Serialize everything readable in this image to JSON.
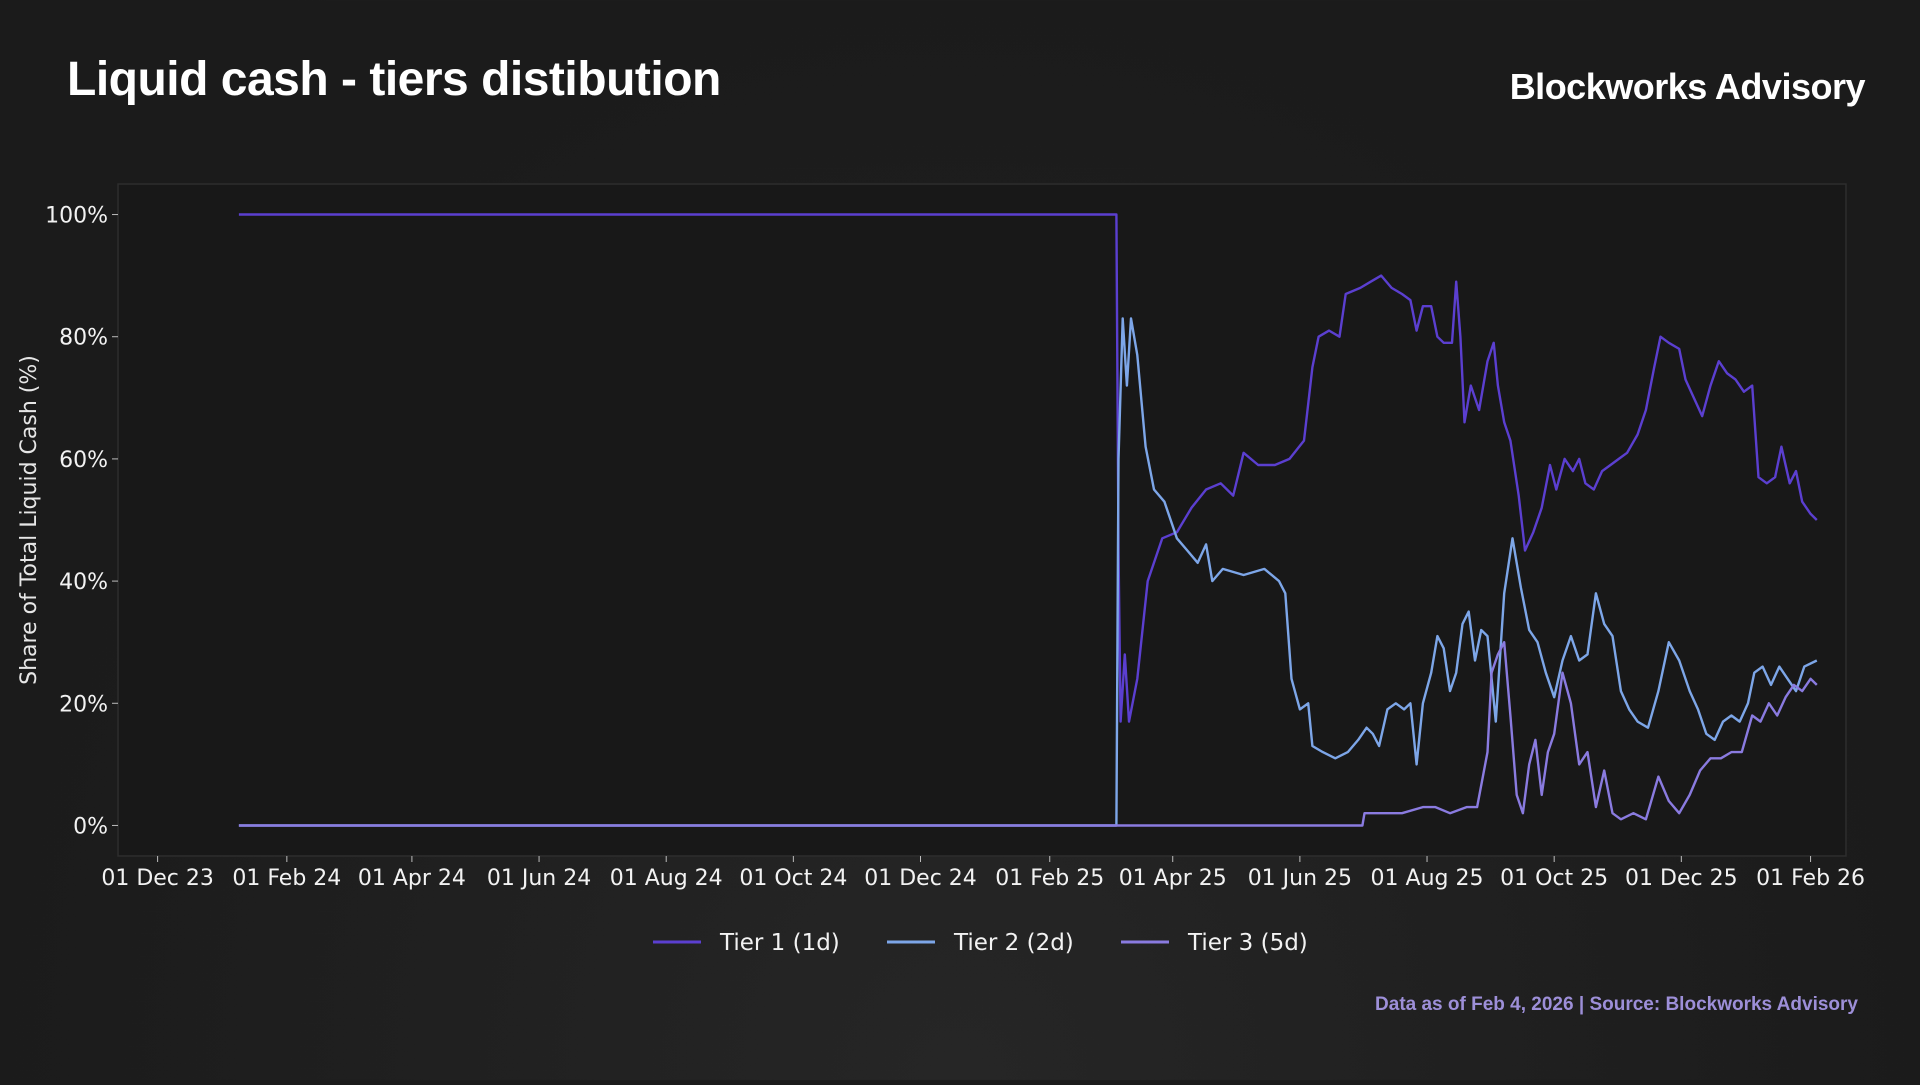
{
  "header": {
    "title": "Liquid cash - tiers distibution",
    "brand": "Blockworks Advisory"
  },
  "footer": {
    "source": "Data as of Feb 4, 2026 | Source: Blockworks Advisory"
  },
  "chart_data": {
    "type": "line",
    "title": "Liquid cash - tiers distibution",
    "xlabel": "",
    "ylabel": "Share of Total Liquid Cash (%)",
    "x_range": [
      "2023-11-12",
      "2026-02-18"
    ],
    "ylim": [
      -5,
      105
    ],
    "yticks": [
      0,
      20,
      40,
      60,
      80,
      100
    ],
    "ytick_labels": [
      "0%",
      "20%",
      "40%",
      "60%",
      "80%",
      "100%"
    ],
    "xticks": [
      "2023-12-01",
      "2024-02-01",
      "2024-04-01",
      "2024-06-01",
      "2024-08-01",
      "2024-10-01",
      "2024-12-01",
      "2025-02-01",
      "2025-04-01",
      "2025-06-01",
      "2025-08-01",
      "2025-10-01",
      "2025-12-01",
      "2026-02-01"
    ],
    "xtick_labels": [
      "01 Dec 23",
      "01 Feb 24",
      "01 Apr 24",
      "01 Jun 24",
      "01 Aug 24",
      "01 Oct 24",
      "01 Dec 24",
      "01 Feb 25",
      "01 Apr 25",
      "01 Jun 25",
      "01 Aug 25",
      "01 Oct 25",
      "01 Dec 25",
      "01 Feb 26"
    ],
    "grid": false,
    "legend_position": "bottom-center",
    "series": [
      {
        "name": "Tier 1 (1d)",
        "color": "#5b3fd0",
        "points": [
          [
            "2024-01-09",
            100
          ],
          [
            "2025-03-05",
            100
          ],
          [
            "2025-03-06",
            45
          ],
          [
            "2025-03-07",
            17
          ],
          [
            "2025-03-09",
            28
          ],
          [
            "2025-03-11",
            17
          ],
          [
            "2025-03-15",
            24
          ],
          [
            "2025-03-20",
            40
          ],
          [
            "2025-03-27",
            47
          ],
          [
            "2025-04-03",
            48
          ],
          [
            "2025-04-10",
            52
          ],
          [
            "2025-04-17",
            55
          ],
          [
            "2025-04-24",
            56
          ],
          [
            "2025-04-30",
            54
          ],
          [
            "2025-05-05",
            61
          ],
          [
            "2025-05-12",
            59
          ],
          [
            "2025-05-20",
            59
          ],
          [
            "2025-05-27",
            60
          ],
          [
            "2025-06-03",
            63
          ],
          [
            "2025-06-07",
            75
          ],
          [
            "2025-06-10",
            80
          ],
          [
            "2025-06-15",
            81
          ],
          [
            "2025-06-20",
            80
          ],
          [
            "2025-06-23",
            87
          ],
          [
            "2025-06-30",
            88
          ],
          [
            "2025-07-05",
            89
          ],
          [
            "2025-07-10",
            90
          ],
          [
            "2025-07-15",
            88
          ],
          [
            "2025-07-20",
            87
          ],
          [
            "2025-07-24",
            86
          ],
          [
            "2025-07-27",
            81
          ],
          [
            "2025-07-30",
            85
          ],
          [
            "2025-08-03",
            85
          ],
          [
            "2025-08-06",
            80
          ],
          [
            "2025-08-09",
            79
          ],
          [
            "2025-08-13",
            79
          ],
          [
            "2025-08-15",
            89
          ],
          [
            "2025-08-17",
            80
          ],
          [
            "2025-08-19",
            66
          ],
          [
            "2025-08-22",
            72
          ],
          [
            "2025-08-26",
            68
          ],
          [
            "2025-08-30",
            76
          ],
          [
            "2025-09-02",
            79
          ],
          [
            "2025-09-04",
            72
          ],
          [
            "2025-09-07",
            66
          ],
          [
            "2025-09-10",
            63
          ],
          [
            "2025-09-14",
            54
          ],
          [
            "2025-09-17",
            45
          ],
          [
            "2025-09-21",
            48
          ],
          [
            "2025-09-25",
            52
          ],
          [
            "2025-09-29",
            59
          ],
          [
            "2025-10-02",
            55
          ],
          [
            "2025-10-06",
            60
          ],
          [
            "2025-10-10",
            58
          ],
          [
            "2025-10-13",
            60
          ],
          [
            "2025-10-16",
            56
          ],
          [
            "2025-10-20",
            55
          ],
          [
            "2025-10-24",
            58
          ],
          [
            "2025-10-28",
            59
          ],
          [
            "2025-11-01",
            60
          ],
          [
            "2025-11-05",
            61
          ],
          [
            "2025-11-10",
            64
          ],
          [
            "2025-11-14",
            68
          ],
          [
            "2025-11-18",
            75
          ],
          [
            "2025-11-21",
            80
          ],
          [
            "2025-11-25",
            79
          ],
          [
            "2025-11-30",
            78
          ],
          [
            "2025-12-03",
            73
          ],
          [
            "2025-12-07",
            70
          ],
          [
            "2025-12-11",
            67
          ],
          [
            "2025-12-15",
            72
          ],
          [
            "2025-12-19",
            76
          ],
          [
            "2025-12-23",
            74
          ],
          [
            "2025-12-27",
            73
          ],
          [
            "2025-12-31",
            71
          ],
          [
            "2026-01-04",
            72
          ],
          [
            "2026-01-07",
            57
          ],
          [
            "2026-01-11",
            56
          ],
          [
            "2026-01-15",
            57
          ],
          [
            "2026-01-18",
            62
          ],
          [
            "2026-01-22",
            56
          ],
          [
            "2026-01-25",
            58
          ],
          [
            "2026-01-28",
            53
          ],
          [
            "2026-02-01",
            51
          ],
          [
            "2026-02-04",
            50
          ]
        ]
      },
      {
        "name": "Tier 2 (2d)",
        "color": "#7da6e8",
        "points": [
          [
            "2024-01-09",
            0
          ],
          [
            "2025-03-05",
            0
          ],
          [
            "2025-03-06",
            60
          ],
          [
            "2025-03-08",
            83
          ],
          [
            "2025-03-10",
            72
          ],
          [
            "2025-03-12",
            83
          ],
          [
            "2025-03-15",
            77
          ],
          [
            "2025-03-19",
            62
          ],
          [
            "2025-03-23",
            55
          ],
          [
            "2025-03-28",
            53
          ],
          [
            "2025-04-03",
            47
          ],
          [
            "2025-04-08",
            45
          ],
          [
            "2025-04-13",
            43
          ],
          [
            "2025-04-17",
            46
          ],
          [
            "2025-04-20",
            40
          ],
          [
            "2025-04-25",
            42
          ],
          [
            "2025-05-05",
            41
          ],
          [
            "2025-05-15",
            42
          ],
          [
            "2025-05-22",
            40
          ],
          [
            "2025-05-25",
            38
          ],
          [
            "2025-05-28",
            24
          ],
          [
            "2025-06-01",
            19
          ],
          [
            "2025-06-05",
            20
          ],
          [
            "2025-06-07",
            13
          ],
          [
            "2025-06-12",
            12
          ],
          [
            "2025-06-18",
            11
          ],
          [
            "2025-06-24",
            12
          ],
          [
            "2025-06-29",
            14
          ],
          [
            "2025-07-03",
            16
          ],
          [
            "2025-07-06",
            15
          ],
          [
            "2025-07-09",
            13
          ],
          [
            "2025-07-13",
            19
          ],
          [
            "2025-07-17",
            20
          ],
          [
            "2025-07-21",
            19
          ],
          [
            "2025-07-24",
            20
          ],
          [
            "2025-07-27",
            10
          ],
          [
            "2025-07-30",
            20
          ],
          [
            "2025-08-03",
            25
          ],
          [
            "2025-08-06",
            31
          ],
          [
            "2025-08-09",
            29
          ],
          [
            "2025-08-12",
            22
          ],
          [
            "2025-08-15",
            25
          ],
          [
            "2025-08-18",
            33
          ],
          [
            "2025-08-21",
            35
          ],
          [
            "2025-08-24",
            27
          ],
          [
            "2025-08-27",
            32
          ],
          [
            "2025-08-30",
            31
          ],
          [
            "2025-09-03",
            17
          ],
          [
            "2025-09-07",
            38
          ],
          [
            "2025-09-11",
            47
          ],
          [
            "2025-09-15",
            39
          ],
          [
            "2025-09-19",
            32
          ],
          [
            "2025-09-23",
            30
          ],
          [
            "2025-09-27",
            25
          ],
          [
            "2025-10-01",
            21
          ],
          [
            "2025-10-05",
            27
          ],
          [
            "2025-10-09",
            31
          ],
          [
            "2025-10-13",
            27
          ],
          [
            "2025-10-17",
            28
          ],
          [
            "2025-10-21",
            38
          ],
          [
            "2025-10-25",
            33
          ],
          [
            "2025-10-29",
            31
          ],
          [
            "2025-11-02",
            22
          ],
          [
            "2025-11-06",
            19
          ],
          [
            "2025-11-10",
            17
          ],
          [
            "2025-11-15",
            16
          ],
          [
            "2025-11-20",
            22
          ],
          [
            "2025-11-25",
            30
          ],
          [
            "2025-11-30",
            27
          ],
          [
            "2025-12-05",
            22
          ],
          [
            "2025-12-09",
            19
          ],
          [
            "2025-12-13",
            15
          ],
          [
            "2025-12-17",
            14
          ],
          [
            "2025-12-21",
            17
          ],
          [
            "2025-12-25",
            18
          ],
          [
            "2025-12-29",
            17
          ],
          [
            "2026-01-02",
            20
          ],
          [
            "2026-01-05",
            25
          ],
          [
            "2026-01-09",
            26
          ],
          [
            "2026-01-13",
            23
          ],
          [
            "2026-01-17",
            26
          ],
          [
            "2026-01-21",
            24
          ],
          [
            "2026-01-25",
            22
          ],
          [
            "2026-01-29",
            26
          ],
          [
            "2026-02-04",
            27
          ]
        ]
      },
      {
        "name": "Tier 3 (5d)",
        "color": "#8a7be0",
        "points": [
          [
            "2024-01-09",
            0
          ],
          [
            "2025-07-01",
            0
          ],
          [
            "2025-07-02",
            2
          ],
          [
            "2025-07-10",
            2
          ],
          [
            "2025-07-20",
            2
          ],
          [
            "2025-07-30",
            3
          ],
          [
            "2025-08-05",
            3
          ],
          [
            "2025-08-12",
            2
          ],
          [
            "2025-08-20",
            3
          ],
          [
            "2025-08-25",
            3
          ],
          [
            "2025-08-30",
            12
          ],
          [
            "2025-09-01",
            25
          ],
          [
            "2025-09-04",
            28
          ],
          [
            "2025-09-07",
            30
          ],
          [
            "2025-09-10",
            18
          ],
          [
            "2025-09-13",
            5
          ],
          [
            "2025-09-16",
            2
          ],
          [
            "2025-09-19",
            10
          ],
          [
            "2025-09-22",
            14
          ],
          [
            "2025-09-25",
            5
          ],
          [
            "2025-09-28",
            12
          ],
          [
            "2025-10-01",
            15
          ],
          [
            "2025-10-05",
            25
          ],
          [
            "2025-10-09",
            20
          ],
          [
            "2025-10-13",
            10
          ],
          [
            "2025-10-17",
            12
          ],
          [
            "2025-10-21",
            3
          ],
          [
            "2025-10-25",
            9
          ],
          [
            "2025-10-29",
            2
          ],
          [
            "2025-11-02",
            1
          ],
          [
            "2025-11-08",
            2
          ],
          [
            "2025-11-14",
            1
          ],
          [
            "2025-11-20",
            8
          ],
          [
            "2025-11-25",
            4
          ],
          [
            "2025-11-30",
            2
          ],
          [
            "2025-12-05",
            5
          ],
          [
            "2025-12-10",
            9
          ],
          [
            "2025-12-15",
            11
          ],
          [
            "2025-12-20",
            11
          ],
          [
            "2025-12-25",
            12
          ],
          [
            "2025-12-30",
            12
          ],
          [
            "2026-01-04",
            18
          ],
          [
            "2026-01-08",
            17
          ],
          [
            "2026-01-12",
            20
          ],
          [
            "2026-01-16",
            18
          ],
          [
            "2026-01-20",
            21
          ],
          [
            "2026-01-24",
            23
          ],
          [
            "2026-01-28",
            22
          ],
          [
            "2026-02-01",
            24
          ],
          [
            "2026-02-04",
            23
          ]
        ]
      }
    ]
  }
}
